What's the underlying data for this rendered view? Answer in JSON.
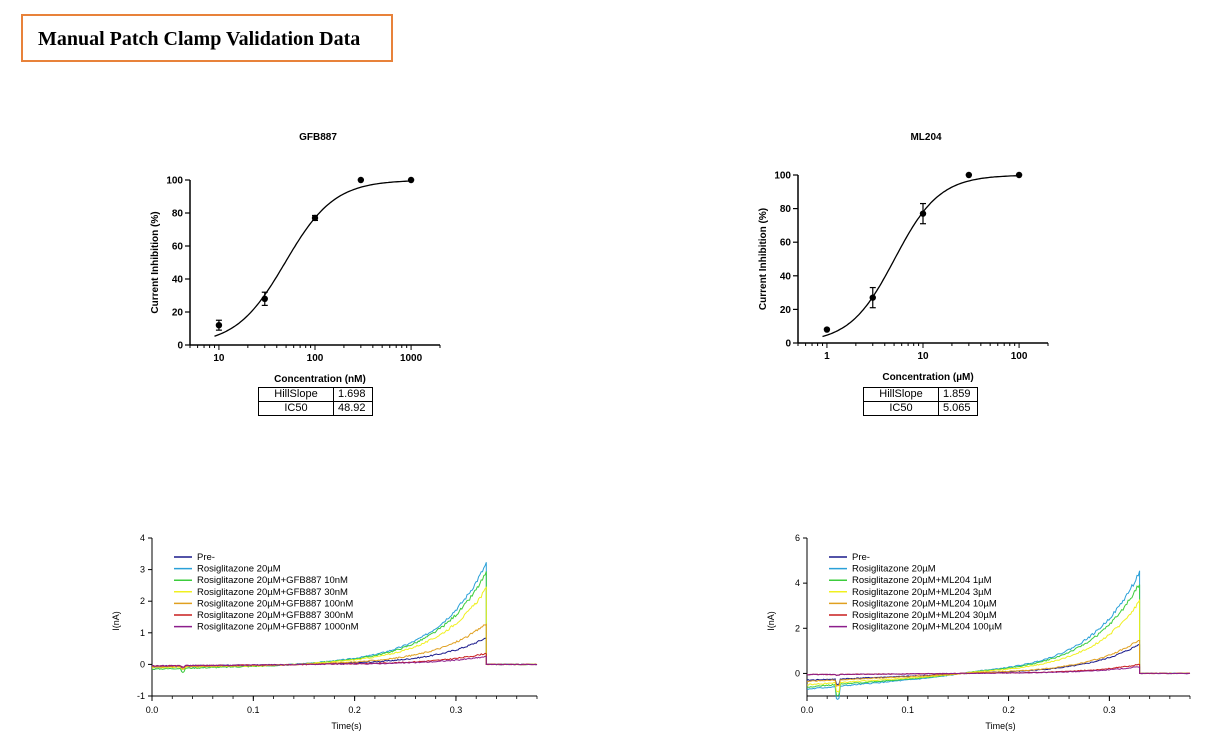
{
  "page": {
    "title": "Manual Patch Clamp Validation Data"
  },
  "chart_data": [
    {
      "id": "gfb",
      "type": "scatter",
      "title": "GFB887",
      "xlabel": "Concentration (nM)",
      "ylabel": "Current Inhibition (%)",
      "xscale": "log",
      "xlim": [
        5,
        2000
      ],
      "ylim": [
        0,
        100
      ],
      "xticks": [
        10,
        100,
        1000
      ],
      "yticks": [
        0,
        20,
        40,
        60,
        80,
        100
      ],
      "x": [
        10,
        30,
        100,
        300,
        1000
      ],
      "y": [
        12,
        28,
        77,
        100,
        100
      ],
      "err": [
        3,
        4,
        1.5,
        0,
        0
      ],
      "fit": {
        "model": "hill",
        "bottom": 0,
        "top": 100,
        "hillslope": 1.698,
        "ic50": 48.92
      },
      "params": [
        {
          "name": "HillSlope",
          "value": "1.698"
        },
        {
          "name": "IC50",
          "value": "48.92"
        }
      ]
    },
    {
      "id": "ml",
      "type": "scatter",
      "title": "ML204",
      "xlabel": "Concentration (µM)",
      "ylabel": "Current Inhibition (%)",
      "xscale": "log",
      "xlim": [
        0.5,
        200
      ],
      "ylim": [
        0,
        100
      ],
      "xticks": [
        1,
        10,
        100
      ],
      "yticks": [
        0,
        20,
        40,
        60,
        80,
        100
      ],
      "x": [
        1,
        3,
        10,
        30,
        100
      ],
      "y": [
        8,
        27,
        77,
        100,
        100
      ],
      "err": [
        0,
        6,
        6,
        0,
        0
      ],
      "fit": {
        "model": "hill",
        "bottom": 0,
        "top": 100,
        "hillslope": 1.859,
        "ic50": 5.065
      },
      "params": [
        {
          "name": "HillSlope",
          "value": "1.859"
        },
        {
          "name": "IC50",
          "value": "5.065"
        }
      ]
    },
    {
      "id": "tr1",
      "type": "line",
      "title": "",
      "xlabel": "Time(s)",
      "ylabel": "I(nA)",
      "xlim": [
        0,
        0.38
      ],
      "ylim": [
        -1,
        4
      ],
      "xticks": [
        0.0,
        0.1,
        0.2,
        0.3
      ],
      "yticks": [
        -1,
        0,
        1,
        2,
        3,
        4
      ],
      "legend_position": "top-left",
      "series": [
        {
          "name": "Pre-",
          "color": "#1a1a8c",
          "peak": 0.85,
          "early": -0.05
        },
        {
          "name": "Rosiglitazone 20µM",
          "color": "#2aa0d8",
          "peak": 3.2,
          "early": -0.1
        },
        {
          "name": "Rosiglitazone 20µM+GFB887 10nM",
          "color": "#3ccc3c",
          "peak": 2.9,
          "early": -0.15
        },
        {
          "name": "Rosiglitazone 20µM+GFB887 30nM",
          "color": "#f0f020",
          "peak": 2.4,
          "early": -0.1
        },
        {
          "name": "Rosiglitazone 20µM+GFB887 100nM",
          "color": "#e0a020",
          "peak": 1.3,
          "early": -0.08
        },
        {
          "name": "Rosiglitazone 20µM+GFB887 300nM",
          "color": "#c81e1e",
          "peak": 0.35,
          "early": -0.05
        },
        {
          "name": "Rosiglitazone 20µM+GFB887 1000nM",
          "color": "#8c1e8c",
          "peak": 0.25,
          "early": -0.05
        }
      ]
    },
    {
      "id": "tr2",
      "type": "line",
      "title": "",
      "xlabel": "Time(s)",
      "ylabel": "I(nA)",
      "xlim": [
        0,
        0.38
      ],
      "ylim": [
        -1,
        6
      ],
      "xticks": [
        0.0,
        0.1,
        0.2,
        0.3
      ],
      "yticks": [
        0,
        2,
        4,
        6
      ],
      "legend_position": "top-left",
      "series": [
        {
          "name": "Pre-",
          "color": "#1a1a8c",
          "peak": 1.3,
          "early": -0.3
        },
        {
          "name": "Rosiglitazone 20µM",
          "color": "#2aa0d8",
          "peak": 4.5,
          "early": -0.7
        },
        {
          "name": "Rosiglitazone 20µM+ML204 1µM",
          "color": "#3ccc3c",
          "peak": 4.0,
          "early": -0.6
        },
        {
          "name": "Rosiglitazone 20µM+ML204 3µM",
          "color": "#f0f020",
          "peak": 3.2,
          "early": -0.5
        },
        {
          "name": "Rosiglitazone 20µM+ML204 10µM",
          "color": "#e0a020",
          "peak": 1.5,
          "early": -0.35
        },
        {
          "name": "Rosiglitazone 20µM+ML204 30µM",
          "color": "#c81e1e",
          "peak": 0.4,
          "early": -0.05
        },
        {
          "name": "Rosiglitazone 20µM+ML204 100µM",
          "color": "#8c1e8c",
          "peak": 0.3,
          "early": -0.05
        }
      ]
    }
  ]
}
